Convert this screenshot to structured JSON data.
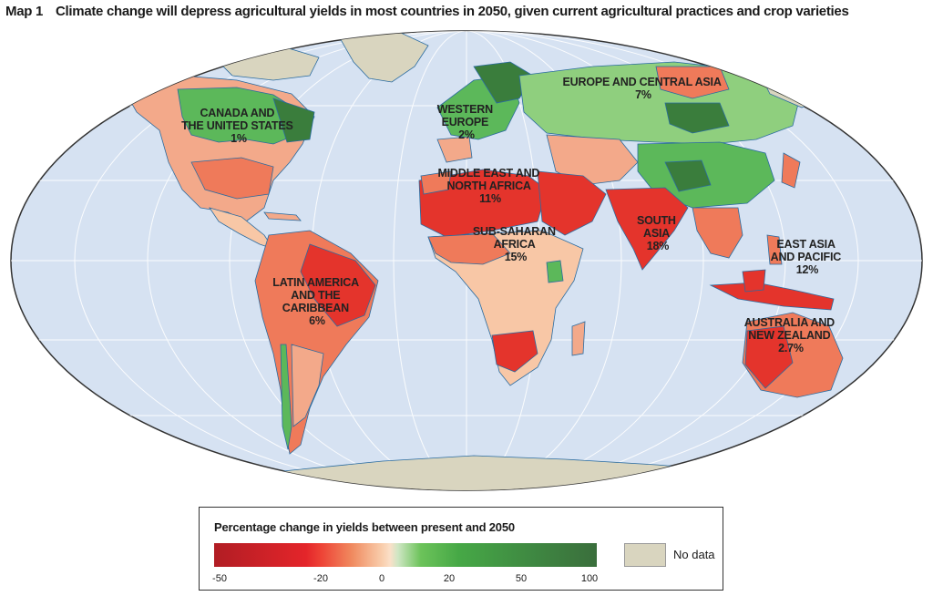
{
  "map": {
    "tag": "Map 1",
    "title": "Climate change will depress agricultural yields in most countries in 2050, given current agricultural practices and crop varieties",
    "regions": [
      {
        "id": "north-america",
        "lines": [
          "CANADA AND",
          "THE UNITED STATES",
          "1%"
        ]
      },
      {
        "id": "western-europe",
        "lines": [
          "WESTERN",
          "EUROPE",
          "2%"
        ]
      },
      {
        "id": "europe-central-asia",
        "lines": [
          "EUROPE AND CENTRAL ASIA",
          "7%"
        ]
      },
      {
        "id": "middle-east",
        "lines": [
          "MIDDLE EAST AND",
          "NORTH AFRICA",
          "11%"
        ]
      },
      {
        "id": "sub-saharan-africa",
        "lines": [
          "SUB-SAHARAN",
          "AFRICA",
          "15%"
        ]
      },
      {
        "id": "south-asia",
        "lines": [
          "SOUTH",
          "ASIA",
          "18%"
        ]
      },
      {
        "id": "east-asia-pacific",
        "lines": [
          "EAST ASIA",
          "AND PACIFIC",
          "12%"
        ]
      },
      {
        "id": "latin-america",
        "lines": [
          "LATIN AMERICA",
          "AND THE",
          "CARIBBEAN",
          "6%"
        ]
      },
      {
        "id": "australia-nz",
        "lines": [
          "AUSTRALIA AND",
          "NEW ZEALAND",
          "2.7%"
        ]
      }
    ],
    "colors": {
      "ocean": "#d6e2f2",
      "no_data": "#d9d5bf",
      "strong_loss": "#e4342c",
      "moderate_loss": "#ef7a5a",
      "slight_loss": "#f8c7a6",
      "gain": "#5cb85a",
      "strong_gain": "#3a7d3c"
    }
  },
  "legend": {
    "title": "Percentage change in yields between present and 2050",
    "ticks": [
      "-50",
      "-20",
      "0",
      "20",
      "50",
      "100"
    ],
    "no_data_label": "No data"
  }
}
